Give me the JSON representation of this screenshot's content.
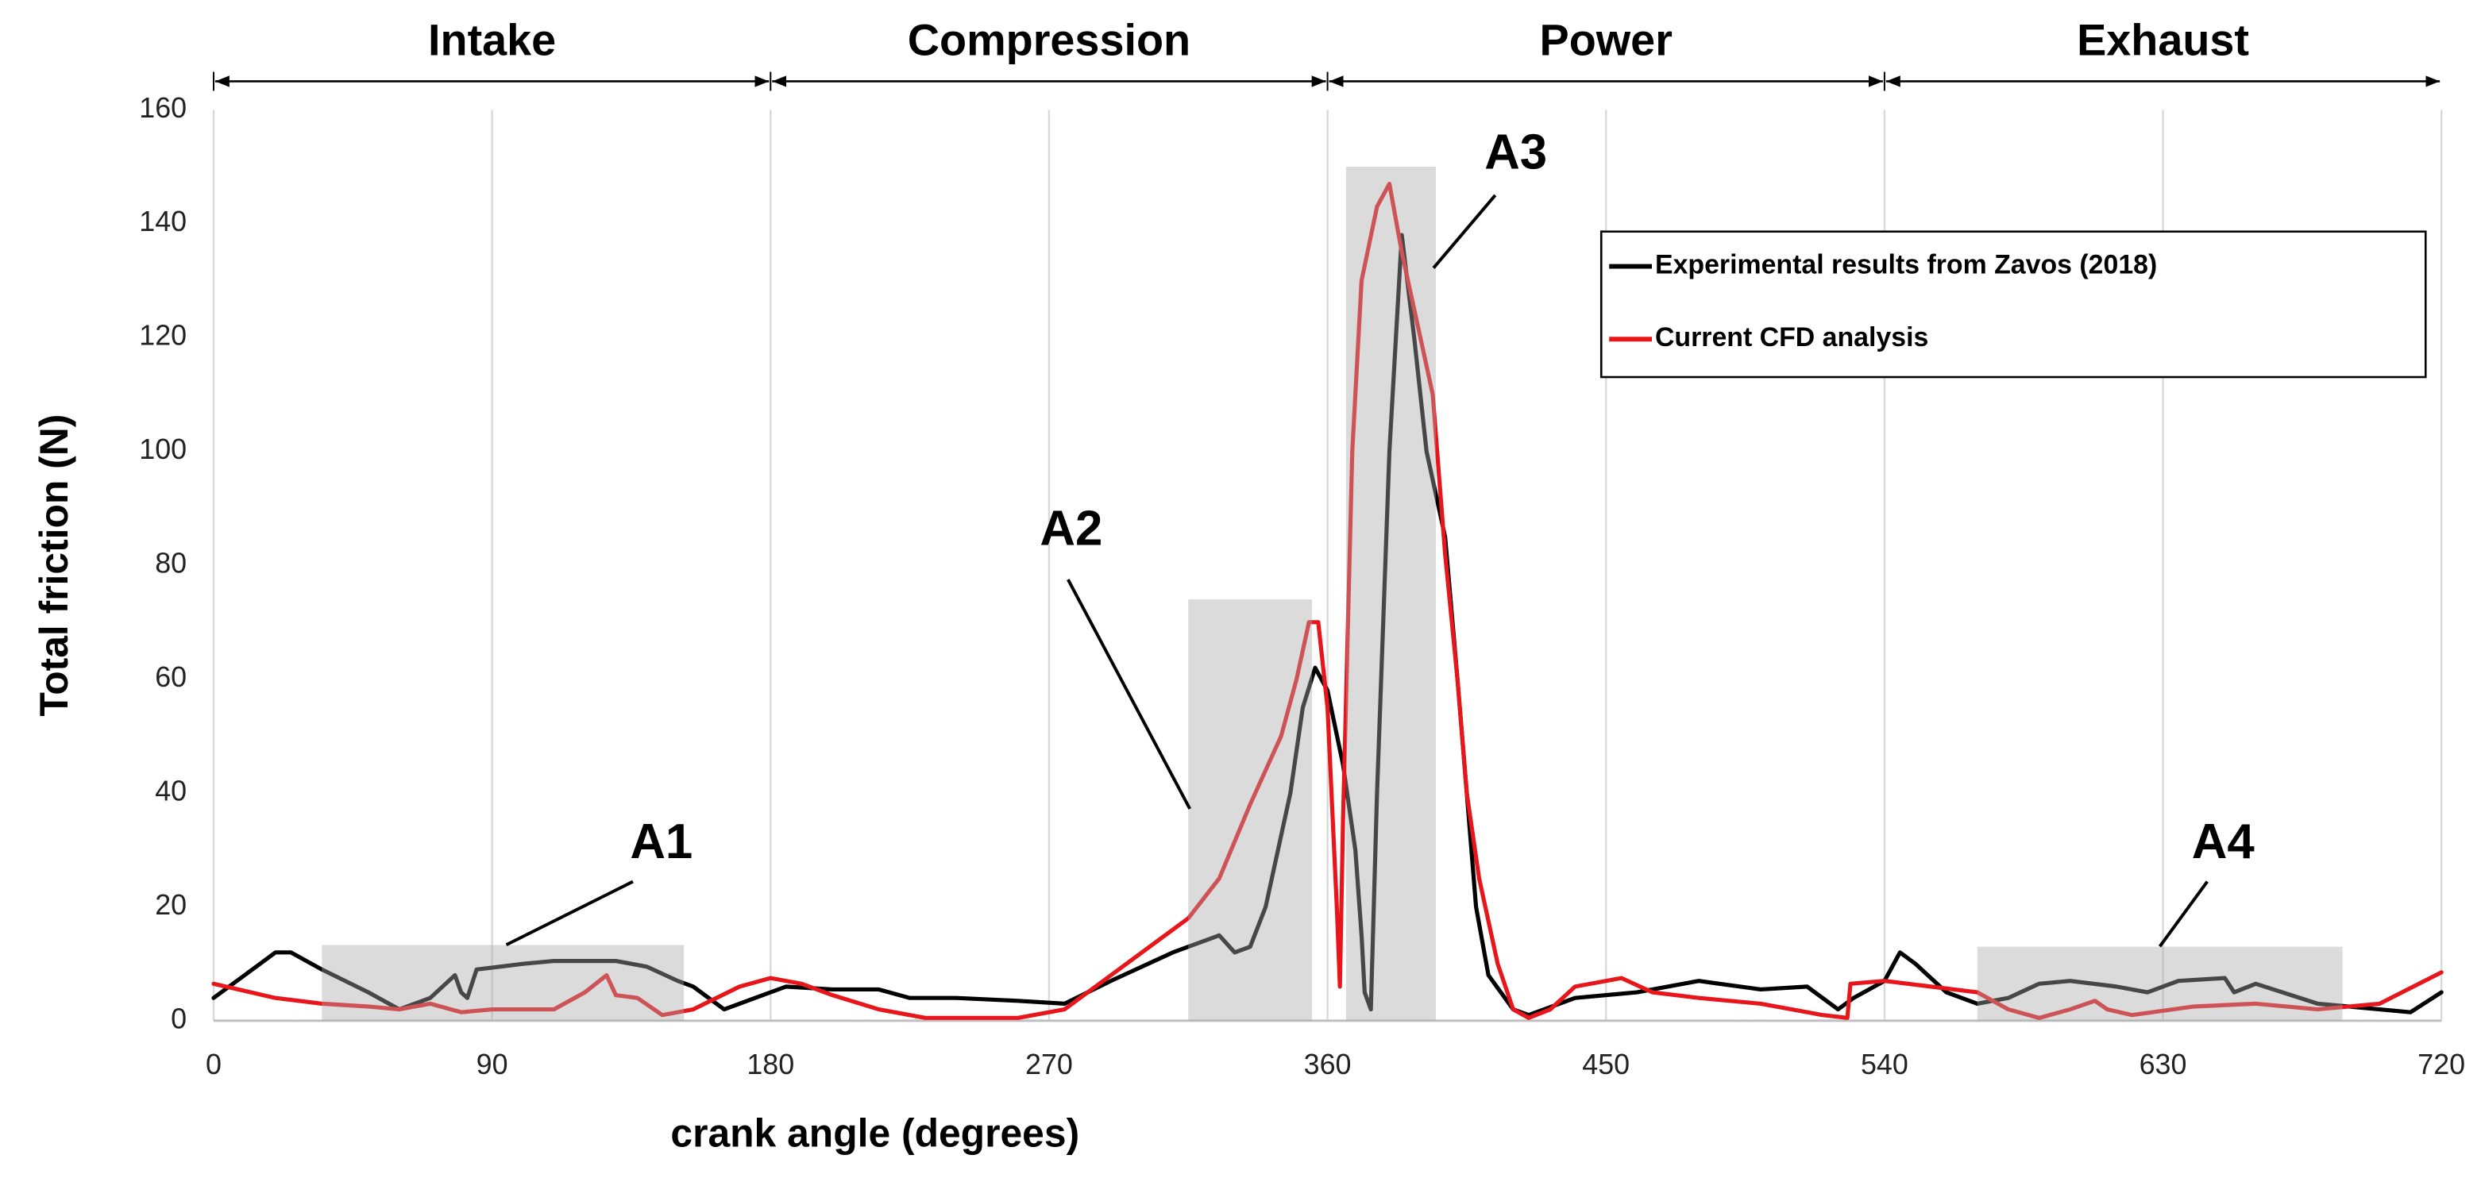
{
  "chart_data": {
    "type": "line",
    "xlabel": "crank angle (degrees)",
    "ylabel": "Total friction (N)",
    "xlim": [
      0,
      720
    ],
    "ylim": [
      0,
      160
    ],
    "xticks": [
      0,
      90,
      180,
      270,
      360,
      450,
      540,
      630,
      720
    ],
    "yticks": [
      0,
      20,
      40,
      60,
      80,
      100,
      120,
      140,
      160
    ],
    "grid": "x",
    "legend": "upper right",
    "phases": [
      {
        "label": "Intake",
        "x": [
          0,
          180
        ]
      },
      {
        "label": "Compression",
        "x": [
          180,
          360
        ]
      },
      {
        "label": "Power",
        "x": [
          360,
          540
        ]
      },
      {
        "label": "Exhaust",
        "x": [
          540,
          720
        ]
      }
    ],
    "annotations": [
      {
        "label": "A1",
        "x": [
          35,
          152
        ],
        "ymax": 13.3
      },
      {
        "label": "A2",
        "x": [
          315,
          355
        ],
        "ymax": 74
      },
      {
        "label": "A3",
        "x": [
          366,
          395
        ],
        "ymax": 150
      },
      {
        "label": "A4",
        "x": [
          570,
          688
        ],
        "ymax": 13
      }
    ],
    "series": [
      {
        "name": "Experimental results from Zavos (2018)",
        "color": "#000000",
        "x": [
          0,
          10,
          20,
          25,
          35,
          50,
          60,
          70,
          78,
          80,
          82,
          85,
          100,
          110,
          130,
          140,
          150,
          155,
          165,
          175,
          185,
          200,
          215,
          225,
          240,
          260,
          275,
          290,
          310,
          325,
          330,
          335,
          340,
          348,
          352,
          356,
          360,
          365,
          369,
          371,
          372,
          374,
          376,
          378,
          380,
          384,
          388,
          392,
          398,
          402,
          405,
          408,
          412,
          420,
          425,
          440,
          460,
          480,
          500,
          515,
          525,
          530,
          540,
          545,
          550,
          560,
          570,
          580,
          590,
          600,
          615,
          625,
          635,
          650,
          653,
          660,
          680,
          700,
          710,
          720
        ],
        "values": [
          4,
          8,
          12,
          12,
          9,
          5,
          2,
          4,
          8,
          5,
          4,
          9,
          10,
          10.5,
          10.5,
          9.5,
          7,
          6,
          2,
          4,
          6,
          5.5,
          5.5,
          4,
          4,
          3.5,
          3,
          7,
          12,
          15,
          12,
          13,
          20,
          40,
          55,
          62,
          58,
          45,
          30,
          15,
          5,
          2,
          40,
          70,
          100,
          138,
          120,
          100,
          85,
          60,
          40,
          20,
          8,
          2,
          1,
          4,
          5,
          7,
          5.5,
          6,
          2,
          4,
          7,
          12,
          10,
          5,
          3,
          4,
          6.5,
          7,
          6,
          5,
          7,
          7.5,
          5,
          6.5,
          3,
          2,
          1.5,
          5
        ]
      },
      {
        "name": "Current CFD analysis",
        "color": "#e8161b",
        "x": [
          0,
          20,
          35,
          50,
          60,
          70,
          80,
          90,
          100,
          110,
          120,
          127,
          130,
          137,
          145,
          155,
          170,
          180,
          190,
          200,
          215,
          230,
          260,
          275,
          290,
          305,
          315,
          325,
          335,
          345,
          350,
          354,
          357,
          360,
          363,
          364,
          365,
          368,
          371,
          376,
          380,
          384,
          390,
          394,
          398,
          402,
          405,
          409,
          415,
          420,
          425,
          432,
          440,
          455,
          465,
          480,
          500,
          520,
          528,
          529,
          540,
          555,
          570,
          580,
          590,
          600,
          608,
          612,
          620,
          640,
          660,
          680,
          700,
          720
        ],
        "values": [
          6.5,
          4,
          3,
          2.5,
          2,
          3,
          1.5,
          2,
          2,
          2,
          5,
          8,
          4.5,
          4,
          1,
          2,
          6,
          7.5,
          6.5,
          4.5,
          2,
          0.5,
          0.5,
          2,
          8,
          14,
          18,
          25,
          38,
          50,
          60,
          70,
          70,
          55,
          20,
          6,
          35,
          100,
          130,
          143,
          147,
          135,
          120,
          110,
          82,
          60,
          40,
          25,
          10,
          2,
          0.5,
          2,
          6,
          7.5,
          5,
          4,
          3,
          1,
          0.5,
          6.5,
          7,
          6,
          5,
          2,
          0.5,
          2,
          3.5,
          2,
          1,
          2.5,
          3,
          2,
          3,
          8.5
        ]
      }
    ]
  }
}
